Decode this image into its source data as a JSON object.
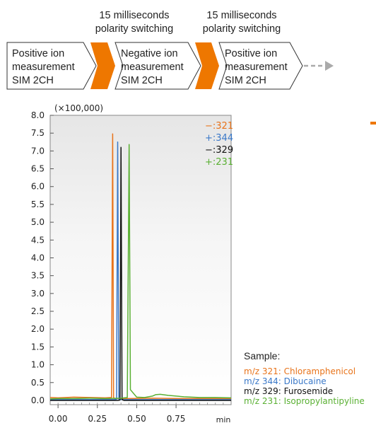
{
  "flow": {
    "switch_labels": [
      {
        "line1": "15 milliseconds",
        "line2": "polarity switching"
      },
      {
        "line1": "15 milliseconds",
        "line2": "polarity switching"
      }
    ],
    "boxes": [
      {
        "lines": [
          "Positive ion",
          "measurement",
          "SIM 2CH"
        ]
      },
      {
        "lines": [
          "Negative ion",
          "measurement",
          "SIM 2CH"
        ]
      },
      {
        "lines": [
          "Positive ion",
          "measurement",
          "SIM 2CH"
        ]
      }
    ],
    "colors": {
      "switch": "#ee7700",
      "box_border": "#333333",
      "arrow": "#aaaaaa"
    }
  },
  "chart_data": {
    "type": "line",
    "y_multiplier_label": "(×100,000)",
    "xlabel": "min",
    "xlim": [
      -0.05,
      1.1
    ],
    "ylim": [
      -0.12,
      8.0
    ],
    "x_ticks": [
      "0.00",
      "0.25",
      "0.50",
      "0.75"
    ],
    "x_tick_values": [
      0.0,
      0.25,
      0.5,
      0.75
    ],
    "y_ticks": [
      "0.0",
      "0.5",
      "1.0",
      "1.5",
      "2.0",
      "2.5",
      "3.0",
      "3.5",
      "4.0",
      "4.5",
      "5.0",
      "5.5",
      "6.0",
      "6.5",
      "7.0",
      "7.5",
      "8.0"
    ],
    "grid": false,
    "series": [
      {
        "name": "−:321",
        "color": "#e8731a",
        "x": [
          -0.05,
          0.0,
          0.1,
          0.2,
          0.3,
          0.34,
          0.347,
          0.353,
          0.36,
          0.45,
          0.6,
          0.8,
          1.1
        ],
        "y": [
          0.08,
          0.07,
          0.09,
          0.08,
          0.07,
          0.08,
          7.48,
          0.08,
          0.05,
          0.05,
          0.06,
          0.05,
          0.05
        ]
      },
      {
        "name": "+:344",
        "color": "#3a78c8",
        "x": [
          -0.05,
          0.2,
          0.36,
          0.372,
          0.379,
          0.386,
          0.4,
          0.6,
          0.8,
          1.1
        ],
        "y": [
          0.02,
          0.02,
          0.02,
          0.03,
          7.25,
          0.02,
          0.02,
          0.02,
          0.02,
          0.02
        ]
      },
      {
        "name": "−:329",
        "color": "#111111",
        "x": [
          -0.05,
          0.2,
          0.38,
          0.394,
          0.4,
          0.407,
          0.42,
          0.6,
          0.8,
          1.1
        ],
        "y": [
          0.0,
          0.0,
          0.0,
          0.01,
          7.1,
          0.02,
          0.0,
          0.0,
          0.0,
          0.0
        ]
      },
      {
        "name": "+:231",
        "color": "#5ab033",
        "x": [
          -0.05,
          0.0,
          0.1,
          0.2,
          0.3,
          0.4,
          0.44,
          0.452,
          0.46,
          0.5,
          0.55,
          0.6,
          0.62,
          0.65,
          0.7,
          0.8,
          0.9,
          1.0,
          1.1
        ],
        "y": [
          0.04,
          0.05,
          0.05,
          0.06,
          0.05,
          0.06,
          0.08,
          7.18,
          0.3,
          0.09,
          0.08,
          0.12,
          0.16,
          0.17,
          0.14,
          0.1,
          0.08,
          0.08,
          0.07
        ]
      }
    ],
    "legend": {
      "placement": "top-right",
      "entries": [
        "−:321",
        "+:344",
        "−:329",
        "+:231"
      ]
    }
  },
  "sample": {
    "title": "Sample:",
    "items": [
      {
        "text": "m/z 321: Chloramphenicol",
        "color": "#e8731a"
      },
      {
        "text": "m/z 344: Dibucaine",
        "color": "#3a78c8"
      },
      {
        "text": "m/z 329: Furosemide",
        "color": "#111111"
      },
      {
        "text": "m/z 231: Isopropylantipyline",
        "color": "#5ab033"
      }
    ]
  },
  "decor": {
    "orange_mark_color": "#ee7700"
  }
}
